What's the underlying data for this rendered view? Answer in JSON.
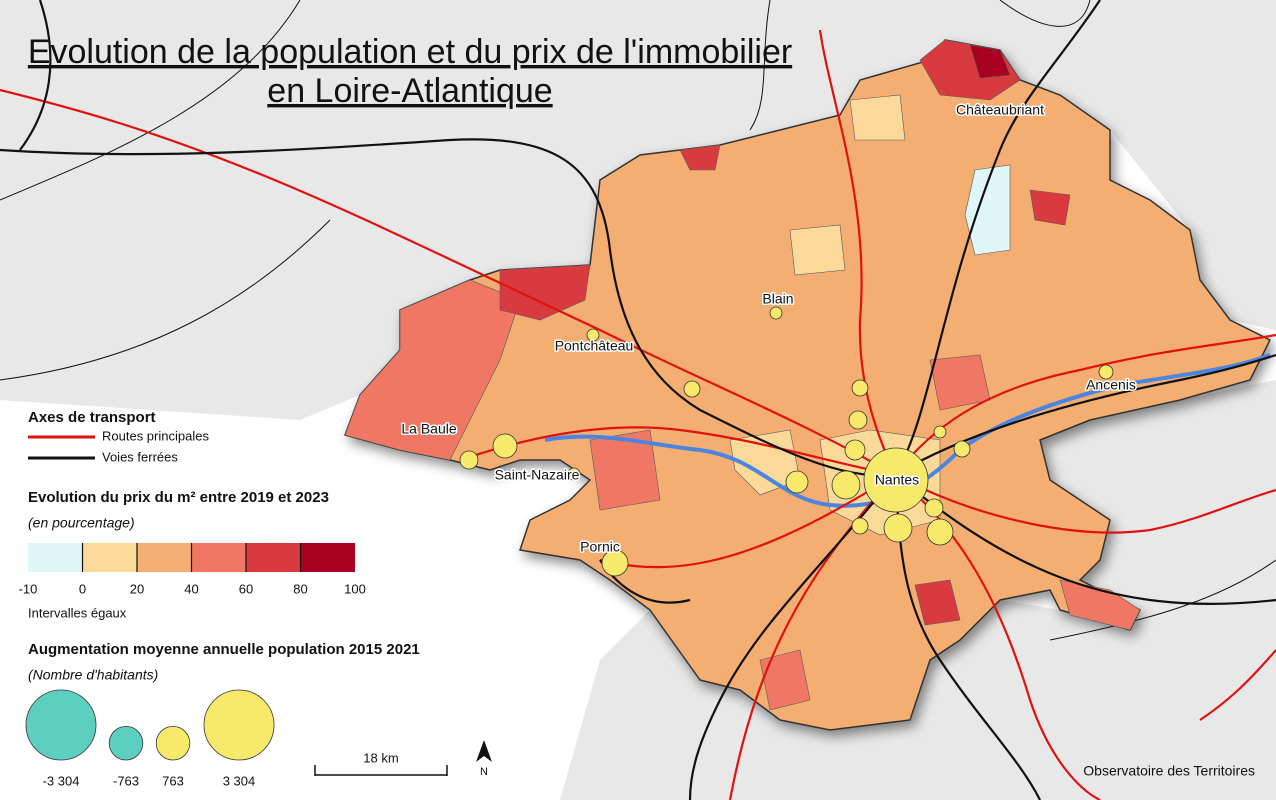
{
  "title": [
    "Evolution de la population et du prix de l'immobilier",
    "en Loire-Atlantique"
  ],
  "cities": [
    "Châteaubriant",
    "Blain",
    "Pontchâteau",
    "Ancenis",
    "La Baule",
    "Saint-Nazaire",
    "Nantes",
    "Pornic"
  ],
  "transport_legend": {
    "title": "Axes de transport",
    "items": [
      {
        "label": "Routes principales",
        "color": "#e0120f"
      },
      {
        "label": "Voies ferrées",
        "color": "#111111"
      }
    ]
  },
  "price_scale": {
    "title": "Evolution du prix du m² entre 2019 et 2023",
    "subtitle": "(en pourcentage)",
    "breaks": [
      -10,
      0,
      20,
      40,
      60,
      80,
      100
    ],
    "colors": [
      "#dff7f7",
      "#fbd999",
      "#f5ae72",
      "#ef7763",
      "#d93a40",
      "#a8001f"
    ],
    "note": "Intervalles égaux"
  },
  "population_scale": {
    "title": "Augmentation moyenne annuelle population 2015 2021",
    "subtitle": "(Nombre d'habitants)",
    "negative_color": "#5ccfc0",
    "positive_color": "#f7ea6b",
    "values": [
      {
        "value": -3304,
        "label": "-3 304"
      },
      {
        "value": -763,
        "label": "-763"
      },
      {
        "value": 763,
        "label": "763"
      },
      {
        "value": 3304,
        "label": "3 304"
      }
    ]
  },
  "scale_bar": "18 km",
  "north": "N",
  "source": "Observatoire des Territoires"
}
